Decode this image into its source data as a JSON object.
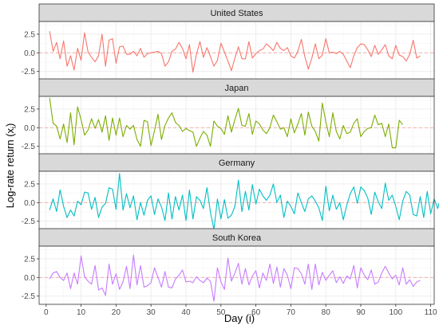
{
  "chart_data": {
    "type": "line",
    "facet_layout": "stacked-vertical",
    "xlabel": "Day (i)",
    "ylabel": "Log-rate return (x",
    "ylabel_subscript": "i",
    "ylabel_suffix": ")",
    "xlim": [
      -2,
      111
    ],
    "xticks": [
      0,
      10,
      20,
      30,
      40,
      50,
      60,
      70,
      80,
      90,
      100,
      110
    ],
    "xtick_labels": [
      "0",
      "10",
      "20",
      "30",
      "40",
      "50",
      "60",
      "70",
      "80",
      "90",
      "100",
      "110"
    ],
    "ylim": [
      -3.6,
      4.2
    ],
    "yticks": [
      -2.5,
      0,
      2.5
    ],
    "ytick_labels": [
      "-2.5",
      "0.0",
      "2.5"
    ],
    "zero_line": true,
    "grid": true,
    "legend": "none",
    "colors": {
      "panel_bg": "#ffffff",
      "strip_bg": "#d9d9d9",
      "grid": "#ebebeb",
      "zero_line": "#f4a6a0",
      "border": "#333333"
    },
    "series": [
      {
        "name": "United States",
        "color": "#F8766D",
        "values": [
          2.9,
          0.2,
          1.4,
          -0.8,
          1.6,
          -1.8,
          -0.4,
          -2.3,
          0.6,
          -1.0,
          2.7,
          0.1,
          -0.6,
          -1.2,
          -0.4,
          2.5,
          -1.8,
          1.7,
          1.9,
          -1.4,
          0.8,
          0.9,
          -0.2,
          -0.2,
          0.2,
          -0.4,
          0.6,
          -0.6,
          -0.1,
          0.0,
          0.1,
          0.2,
          -0.1,
          -1.8,
          -1.2,
          0.2,
          0.5,
          1.4,
          0.6,
          -0.8,
          1.1,
          -2.6,
          -0.2,
          1.5,
          -0.6,
          0.7,
          -0.5,
          -1.8,
          -1.0,
          1.3,
          0.1,
          -1.1,
          -2.4,
          -0.7,
          0.8,
          -0.8,
          -0.8,
          1.5,
          -0.7,
          -0.1,
          0.3,
          0.5,
          1.2,
          0.8,
          0.3,
          1.4,
          0.6,
          0.3,
          0.7,
          -0.4,
          -0.7,
          0.2,
          1.8,
          -0.5,
          -2.2,
          -0.7,
          1.2,
          -0.8,
          -0.3,
          1.9,
          0.0,
          0.1,
          -0.1,
          0.2,
          -0.2,
          -1.1,
          -2.0,
          -0.4,
          0.7,
          1.2,
          1.1,
          0.4,
          -0.5,
          1.0,
          -0.2,
          0.4,
          1.1,
          -0.4,
          -0.8,
          1.0,
          -0.3,
          -0.5,
          -1.1,
          -0.2,
          1.7,
          -0.7,
          -0.4
        ]
      },
      {
        "name": "Japan",
        "color": "#7CAE00",
        "values": [
          4.0,
          0.6,
          0.2,
          -1.5,
          0.5,
          -2.0,
          2.0,
          -2.3,
          2.8,
          1.1,
          -1.0,
          -0.3,
          1.2,
          -0.1,
          1.1,
          -0.6,
          1.6,
          -1.7,
          1.3,
          -1.0,
          1.3,
          -1.2,
          0.3,
          -0.2,
          0.3,
          -1.6,
          -2.5,
          1.0,
          0.8,
          -2.4,
          -0.4,
          1.8,
          -1.6,
          0.3,
          1.3,
          2.0,
          0.7,
          0.3,
          -0.5,
          -0.1,
          -0.4,
          -0.6,
          -2.5,
          -1.4,
          -0.5,
          -1.0,
          -2.5,
          0.9,
          0.2,
          -0.1,
          -0.9,
          1.6,
          -0.6,
          1.1,
          2.6,
          0.3,
          0.2,
          1.9,
          -0.9,
          0.9,
          0.5,
          -0.3,
          -0.8,
          0.0,
          1.7,
          0.8,
          -0.2,
          0.0,
          -1.2,
          1.2,
          -0.7,
          0.5,
          1.9,
          -1.0,
          2.1,
          0.2,
          -0.5,
          -1.8,
          3.3,
          0.8,
          -1.2,
          2.0,
          -0.5,
          -1.5,
          0.3,
          -0.8,
          -0.6,
          0.6,
          1.2,
          -1.2,
          -0.5,
          -0.1,
          0.0,
          1.7,
          0.4,
          0.6,
          -1.2,
          0.5,
          -2.7,
          -2.7,
          1.0,
          0.4
        ]
      },
      {
        "name": "Germany",
        "color": "#00BFC4",
        "values": [
          -1.0,
          0.5,
          -1.2,
          1.7,
          -0.5,
          -2.0,
          -1.0,
          -1.8,
          0.2,
          -0.3,
          1.4,
          1.3,
          -0.9,
          0.7,
          -2.0,
          -0.6,
          -0.1,
          2.0,
          1.8,
          -0.9,
          3.9,
          -1.0,
          1.2,
          -0.7,
          0.9,
          -2.3,
          0.0,
          -1.7,
          0.3,
          0.9,
          -1.6,
          0.5,
          -0.6,
          -2.4,
          1.3,
          -2.2,
          0.8,
          -1.0,
          1.0,
          -2.4,
          1.7,
          -2.2,
          0.8,
          0.3,
          -0.8,
          2.0,
          -1.3,
          -3.6,
          0.5,
          -2.2,
          0.4,
          -2.1,
          -1.7,
          -0.5,
          3.0,
          -1.2,
          1.5,
          -1.0,
          2.4,
          -0.2,
          1.8,
          0.9,
          0.3,
          1.0,
          2.5,
          0.0,
          1.0,
          -2.0,
          0.2,
          -0.5,
          -1.5,
          1.3,
          0.0,
          -1.2,
          0.5,
          0.9,
          0.2,
          -0.7,
          -2.4,
          2.2,
          -1.1,
          1.0,
          -0.9,
          0.0,
          -2.3,
          -0.3,
          1.2,
          2.1,
          -0.1,
          2.1,
          1.6,
          0.6,
          -1.6,
          1.4,
          0.1,
          -0.8,
          2.6,
          0.3,
          1.0,
          -0.5,
          -2.3,
          0.2,
          1.5,
          1.0,
          -1.6,
          -1.8,
          0.8,
          -2.0,
          1.5,
          -1.5,
          0.5,
          -0.8,
          1.0,
          2.6,
          -0.5,
          -0.5
        ]
      },
      {
        "name": "South Korea",
        "color": "#C77CFF",
        "values": [
          -0.2,
          0.6,
          0.8,
          0.0,
          -0.4,
          0.6,
          -1.5,
          0.6,
          -0.9,
          2.9,
          0.1,
          -0.5,
          -0.9,
          1.6,
          -1.7,
          -1.4,
          -2.4,
          1.8,
          -0.9,
          0.5,
          -1.6,
          -0.6,
          1.5,
          -1.5,
          3.0,
          -1.0,
          1.6,
          -1.3,
          -1.1,
          -0.7,
          1.3,
          0.0,
          -1.3,
          0.8,
          -1.3,
          -1.4,
          -0.2,
          0.3,
          1.0,
          -0.6,
          -0.5,
          -0.7,
          0.1,
          -0.4,
          -0.7,
          -0.1,
          -0.5,
          -3.2,
          1.3,
          -0.6,
          -1.6,
          2.6,
          -0.5,
          0.6,
          1.9,
          -0.9,
          1.2,
          -1.0,
          0.2,
          0.9,
          -1.4,
          0.6,
          -0.4,
          1.8,
          -0.8,
          1.4,
          -1.3,
          1.2,
          0.3,
          -1.5,
          1.3,
          1.2,
          0.5,
          -0.9,
          1.8,
          -1.6,
          1.8,
          -1.0,
          0.7,
          -0.4,
          0.3,
          0.9,
          -0.7,
          0.1,
          -0.8,
          0.2,
          -0.2,
          1.6,
          -1.4,
          1.3,
          0.3,
          -0.3,
          1.0,
          -0.9,
          -0.6,
          0.6,
          1.5,
          0.6,
          -0.2,
          0.3,
          -1.0,
          1.3,
          -0.9,
          -0.3,
          -1.2,
          -0.6,
          -0.4
        ]
      }
    ]
  }
}
